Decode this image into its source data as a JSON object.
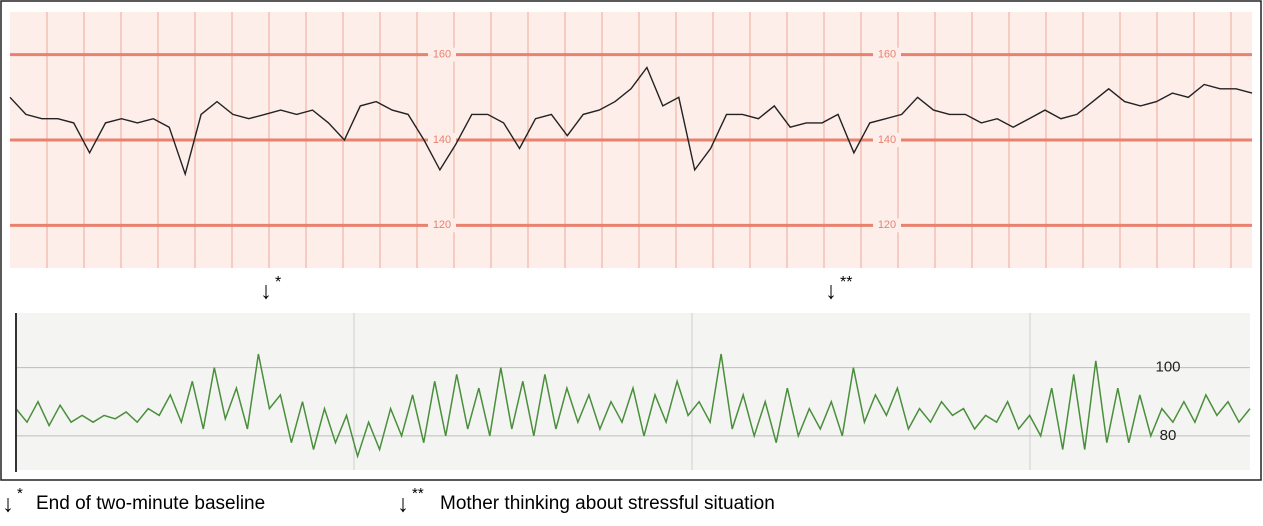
{
  "chart_data": [
    {
      "type": "line",
      "color": "#222222",
      "grid_color": "#e8826e",
      "background": "#fdeeea",
      "ylim": [
        110,
        170
      ],
      "yticks": [
        120,
        140,
        160
      ],
      "values": [
        150,
        146,
        145,
        145,
        144,
        137,
        144,
        145,
        144,
        145,
        143,
        132,
        146,
        149,
        146,
        145,
        146,
        147,
        146,
        147,
        144,
        140,
        148,
        149,
        147,
        146,
        140,
        133,
        139,
        146,
        146,
        144,
        138,
        145,
        146,
        141,
        146,
        147,
        149,
        152,
        157,
        148,
        150,
        133,
        138,
        146,
        146,
        145,
        148,
        143,
        144,
        144,
        146,
        137,
        144,
        145,
        146,
        150,
        147,
        146,
        146,
        144,
        145,
        143,
        145,
        147,
        145,
        146,
        149,
        152,
        149,
        148,
        149,
        151,
        150,
        153,
        152,
        152,
        151
      ]
    },
    {
      "type": "line",
      "color": "#4a8f3c",
      "grid_color": "#bdbdbd",
      "background": "#f4f4f2",
      "ylim": [
        70,
        116
      ],
      "yticks": [
        80,
        100
      ],
      "values": [
        88,
        84,
        90,
        83,
        89,
        84,
        86,
        84,
        86,
        85,
        87,
        84,
        88,
        86,
        92,
        84,
        96,
        82,
        100,
        85,
        94,
        82,
        104,
        88,
        92,
        78,
        90,
        76,
        88,
        78,
        86,
        74,
        84,
        76,
        88,
        80,
        92,
        78,
        96,
        80,
        98,
        82,
        94,
        80,
        100,
        82,
        96,
        80,
        98,
        82,
        94,
        84,
        92,
        82,
        90,
        84,
        94,
        80,
        92,
        84,
        96,
        86,
        90,
        84,
        104,
        82,
        92,
        80,
        90,
        78,
        94,
        80,
        88,
        82,
        90,
        80,
        100,
        84,
        92,
        86,
        94,
        82,
        88,
        84,
        90,
        86,
        88,
        82,
        86,
        84,
        90,
        82,
        86,
        80,
        94,
        76,
        98,
        76,
        102,
        78,
        94,
        78,
        92,
        80,
        88,
        84,
        90,
        84,
        92,
        86,
        90,
        84,
        88
      ]
    }
  ],
  "annotations": [
    {
      "arrow": "↓",
      "mark": "*"
    },
    {
      "arrow": "↓",
      "mark": "**"
    }
  ],
  "caption": [
    {
      "arrow": "↓",
      "mark": "*",
      "text": "End of two-minute baseline"
    },
    {
      "arrow": "↓",
      "mark": "**",
      "text": "Mother thinking about stressful situation"
    }
  ]
}
